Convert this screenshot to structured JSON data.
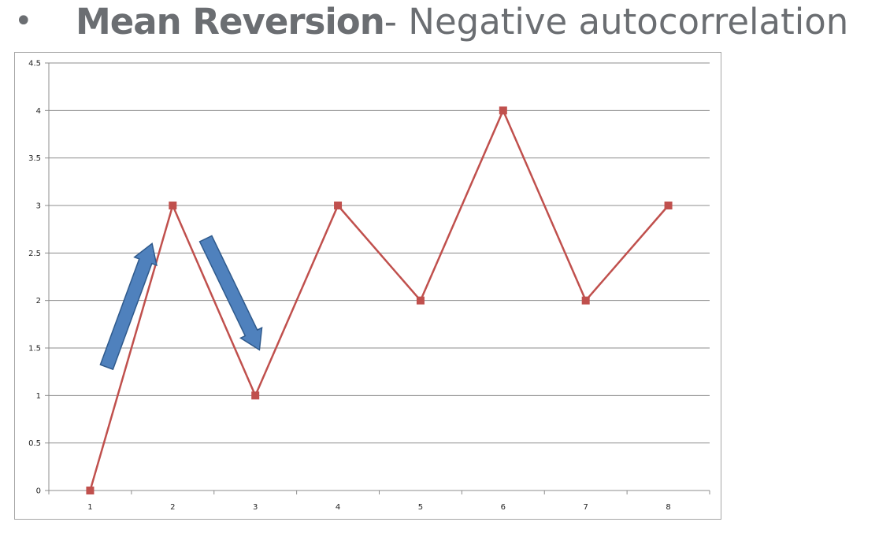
{
  "slide": {
    "bullet": "•",
    "title_bold": "Mean Reversion",
    "title_rest": " - Negative autocorrelation"
  },
  "chart_data": {
    "type": "line",
    "title": "",
    "xlabel": "",
    "ylabel": "",
    "categories": [
      "1",
      "2",
      "3",
      "4",
      "5",
      "6",
      "7",
      "8"
    ],
    "series": [
      {
        "values": [
          0,
          3,
          1,
          3,
          2,
          4,
          2,
          3
        ],
        "color": "#c0504d",
        "marker": "square"
      }
    ],
    "ylim": [
      0,
      4.5
    ],
    "yticks": [
      "0",
      "0.5",
      "1",
      "1.5",
      "2",
      "2.5",
      "3",
      "3.5",
      "4",
      "4.5"
    ],
    "grid": true,
    "legend": "none",
    "annotations": [
      {
        "shape": "arrow",
        "direction": "up",
        "from": [
          1.2,
          1.3
        ],
        "to": [
          1.75,
          2.6
        ],
        "color": "#4f81bd"
      },
      {
        "shape": "arrow",
        "direction": "down",
        "from": [
          2.4,
          2.65
        ],
        "to": [
          3.05,
          1.48
        ],
        "color": "#4f81bd"
      }
    ]
  }
}
